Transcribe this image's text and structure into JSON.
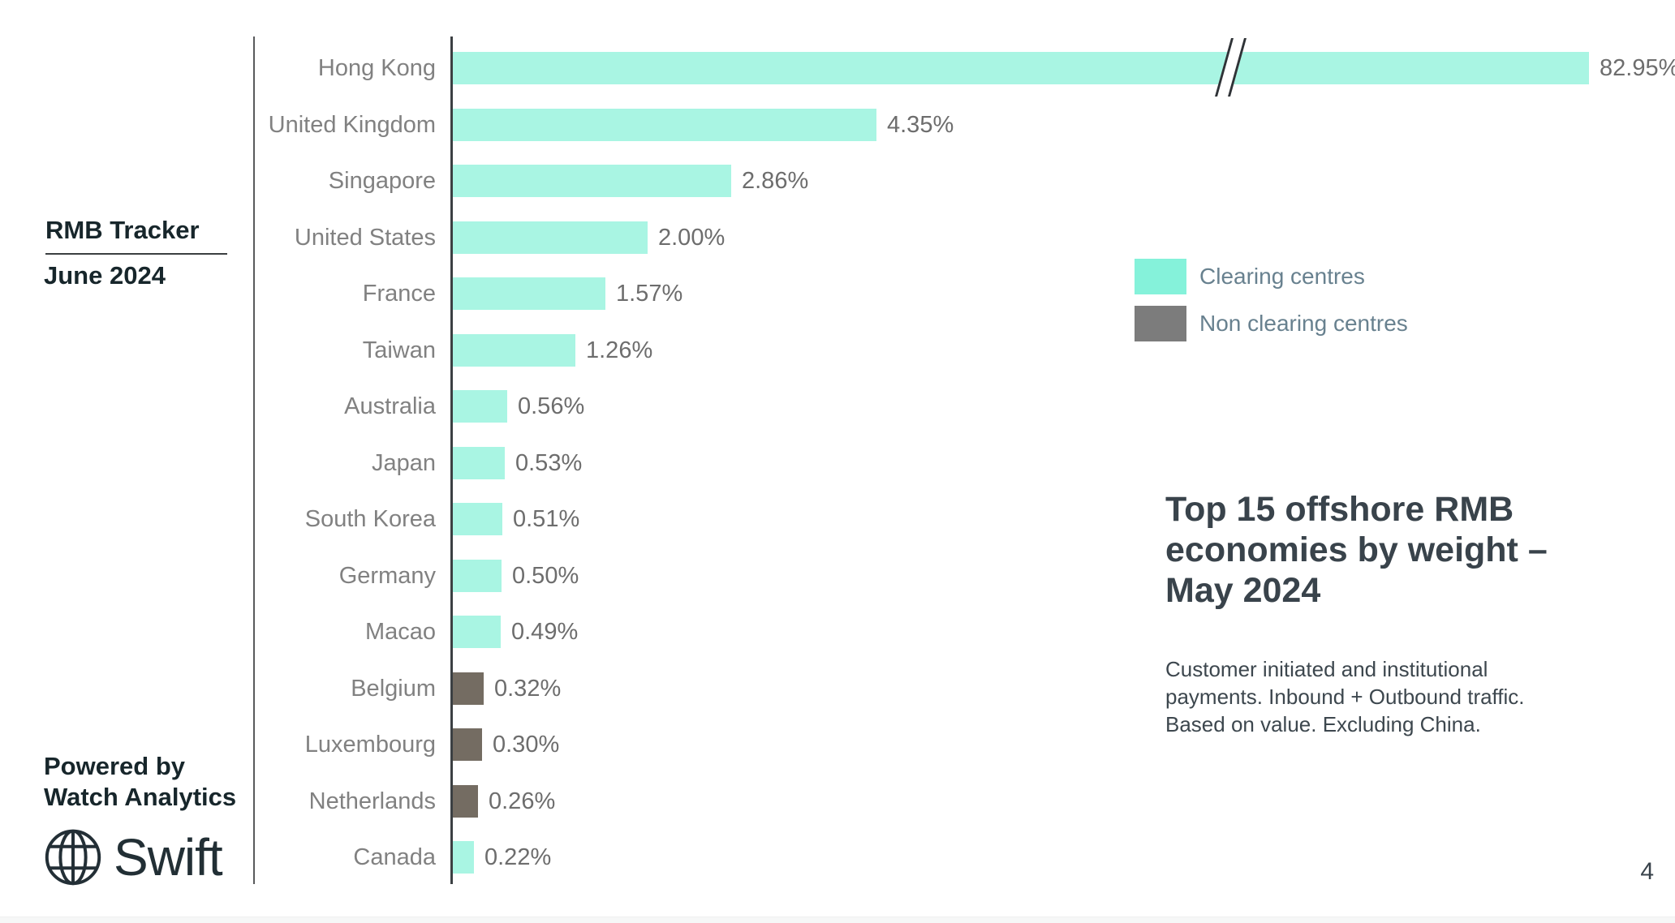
{
  "page": {
    "page_number": "4"
  },
  "sidebar": {
    "report_title": "RMB Tracker",
    "report_month": "June 2024",
    "powered_by": "Powered by\nWatch Analytics",
    "brand_wordmark": "Swift"
  },
  "legend": {
    "items": [
      {
        "label": "Clearing centres",
        "swatch_color": "#85f2da"
      },
      {
        "label": "Non clearing centres",
        "swatch_color": "#7c7c7c"
      }
    ]
  },
  "panel": {
    "title": "Top 15 offshore RMB\neconomies by weight –\nMay 2024",
    "subtitle": "Customer initiated and institutional\npayments. Inbound + Outbound traffic.\nBased on value. Excluding China."
  },
  "chart_data": {
    "type": "bar",
    "orientation": "horizontal",
    "title": "Top 15 offshore RMB economies by weight – May 2024",
    "xlabel": "",
    "ylabel": "",
    "categories": [
      "Hong Kong",
      "United Kingdom",
      "Singapore",
      "United States",
      "France",
      "Taiwan",
      "Australia",
      "Japan",
      "South Korea",
      "Germany",
      "Macao",
      "Belgium",
      "Luxembourg",
      "Netherlands",
      "Canada"
    ],
    "values": [
      82.95,
      4.35,
      2.86,
      2.0,
      1.57,
      1.26,
      0.56,
      0.53,
      0.51,
      0.5,
      0.49,
      0.32,
      0.3,
      0.26,
      0.22
    ],
    "value_labels": [
      "82.95%",
      "4.35%",
      "2.86%",
      "2.00%",
      "1.57%",
      "1.26%",
      "0.56%",
      "0.53%",
      "0.51%",
      "0.50%",
      "0.49%",
      "0.32%",
      "0.30%",
      "0.26%",
      "0.22%"
    ],
    "series_membership": [
      "clearing",
      "clearing",
      "clearing",
      "clearing",
      "clearing",
      "clearing",
      "clearing",
      "clearing",
      "clearing",
      "clearing",
      "clearing",
      "non_clearing",
      "non_clearing",
      "non_clearing",
      "clearing"
    ],
    "series": [
      {
        "name": "Clearing centres",
        "color": "#a9f5e3"
      },
      {
        "name": "Non clearing centres",
        "color": "#746c62"
      }
    ],
    "axis_break": {
      "applied_to": "Hong Kong",
      "symbol": "//"
    },
    "legend_position": "right",
    "value_label_position": "end-of-bar",
    "grid": false
  }
}
